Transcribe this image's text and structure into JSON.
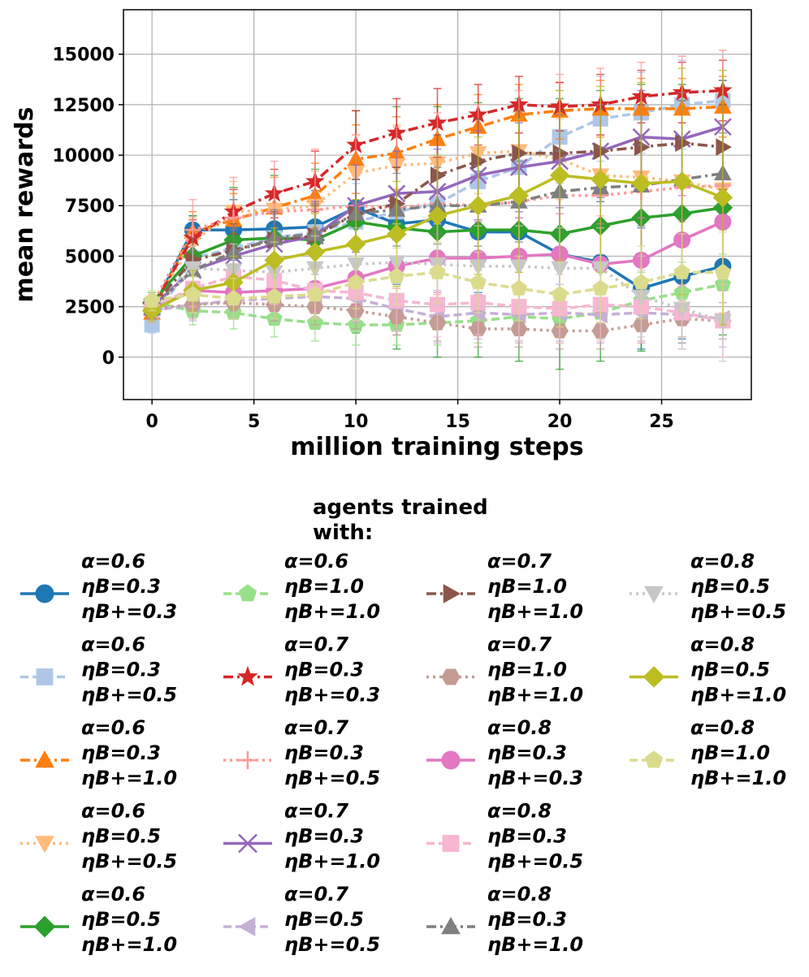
{
  "chart_data": {
    "type": "line",
    "xlabel": "million training steps",
    "ylabel": "mean rewards",
    "xlim": [
      -1.4,
      29.4
    ],
    "ylim": [
      -2100,
      17200
    ],
    "xticks": [
      0,
      5,
      10,
      15,
      20,
      25
    ],
    "yticks": [
      0,
      2500,
      5000,
      7500,
      10000,
      12500,
      15000
    ],
    "grid": true,
    "legend": {
      "title": "agents trained with:",
      "placement": "below",
      "columns": 4
    },
    "x": [
      0,
      2,
      4,
      6,
      8,
      10,
      12,
      14,
      16,
      18,
      20,
      22,
      24,
      26,
      28
    ],
    "series": [
      {
        "name": "α=0.6 ηB=0.3 ηB+=0.3",
        "label": [
          "α=0.6",
          "ηB=0.3",
          "ηB+=0.3"
        ],
        "color": "#1f77b4",
        "marker": "circle",
        "dash": "solid",
        "values": [
          2300,
          6300,
          6300,
          6350,
          6450,
          7400,
          6600,
          6800,
          6200,
          6200,
          5100,
          4700,
          3400,
          4000,
          4500
        ],
        "err": [
          500,
          700,
          1500,
          1700,
          1800,
          2200,
          3000,
          2800,
          3000,
          3400,
          3200,
          3000,
          3000,
          3100,
          3000
        ]
      },
      {
        "name": "α=0.6 ηB=0.3 ηB+=0.5",
        "label": [
          "α=0.6",
          "ηB=0.3",
          "ηB+=0.5"
        ],
        "color": "#aec7e8",
        "marker": "square",
        "dash": "dashed",
        "values": [
          1600,
          4900,
          5400,
          5900,
          6200,
          6700,
          7200,
          7600,
          8700,
          9400,
          10900,
          11800,
          12100,
          12500,
          12700
        ],
        "err": [
          400,
          1400,
          1500,
          1600,
          1700,
          1900,
          2200,
          2300,
          2400,
          2500,
          2300,
          2100,
          2000,
          2200,
          2300
        ]
      },
      {
        "name": "α=0.6 ηB=0.3 ηB+=1.0",
        "label": [
          "α=0.6",
          "ηB=0.3",
          "ηB+=1.0"
        ],
        "color": "#ff7f0e",
        "marker": "triangle-up",
        "dash": "dashdot",
        "values": [
          2200,
          6200,
          6800,
          7400,
          8000,
          9800,
          10100,
          10800,
          11400,
          12000,
          12200,
          12300,
          12300,
          12300,
          12400
        ],
        "err": [
          500,
          1000,
          1300,
          1500,
          1600,
          1700,
          1800,
          1700,
          1600,
          1500,
          1400,
          1400,
          1500,
          1500,
          1500
        ]
      },
      {
        "name": "α=0.6 ηB=0.5 ηB+=0.5",
        "label": [
          "α=0.6",
          "ηB=0.5",
          "ηB+=0.5"
        ],
        "color": "#ffbb78",
        "marker": "triangle-down",
        "dash": "dotted",
        "values": [
          2400,
          5700,
          7200,
          7300,
          7500,
          9100,
          9500,
          9600,
          10100,
          10200,
          9800,
          9000,
          8900,
          8700,
          8300
        ],
        "err": [
          500,
          1200,
          1500,
          1600,
          1700,
          1900,
          2000,
          2100,
          2000,
          2000,
          2000,
          2000,
          2000,
          2000,
          2000
        ]
      },
      {
        "name": "α=0.6 ηB=0.5 ηB+=1.0",
        "label": [
          "α=0.6",
          "ηB=0.5",
          "ηB+=1.0"
        ],
        "color": "#2ca02c",
        "marker": "diamond",
        "dash": "solid",
        "values": [
          2700,
          5000,
          5800,
          5900,
          5800,
          6700,
          6400,
          6200,
          6300,
          6300,
          6100,
          6500,
          6900,
          7100,
          7400
        ],
        "err": [
          500,
          2000,
          2600,
          3100,
          3500,
          5500,
          6000,
          6200,
          6300,
          6500,
          6700,
          6700,
          6600,
          6400,
          6300
        ]
      },
      {
        "name": "α=0.6 ηB=1.0 ηB+=1.0",
        "label": [
          "α=0.6",
          "ηB=1.0",
          "ηB+=1.0"
        ],
        "color": "#98df8a",
        "marker": "pentagon",
        "dash": "dashed",
        "values": [
          2700,
          2300,
          2200,
          1900,
          1700,
          1600,
          1600,
          1700,
          1800,
          2000,
          1900,
          2200,
          2800,
          3200,
          3600
        ],
        "err": [
          500,
          700,
          800,
          900,
          900,
          1000,
          1000,
          1100,
          1100,
          1200,
          1200,
          1300,
          1400,
          1500,
          1500
        ]
      },
      {
        "name": "α=0.7 ηB=0.3 ηB+=0.3",
        "label": [
          "α=0.7",
          "ηB=0.3",
          "ηB+=0.3"
        ],
        "color": "#d62728",
        "marker": "star",
        "dash": "dashdot",
        "values": [
          2500,
          5900,
          7200,
          8100,
          8700,
          10500,
          11100,
          11600,
          12000,
          12500,
          12400,
          12500,
          12900,
          13100,
          13200
        ],
        "err": [
          500,
          900,
          1100,
          1200,
          1500,
          1700,
          1700,
          1700,
          1500,
          1400,
          1200,
          1500,
          1300,
          1500,
          1500
        ]
      },
      {
        "name": "α=0.7 ηB=0.3 ηB+=0.5",
        "label": [
          "α=0.7",
          "ηB=0.3",
          "ηB+=0.5"
        ],
        "color": "#ff9896",
        "marker": "plus",
        "dash": "dotted",
        "values": [
          2600,
          6300,
          6900,
          7200,
          7300,
          7500,
          7400,
          7600,
          7500,
          7700,
          8000,
          8000,
          8200,
          8400,
          8500
        ],
        "err": [
          500,
          1500,
          2000,
          2500,
          3000,
          3500,
          4000,
          4500,
          5000,
          5500,
          6000,
          6300,
          6400,
          6500,
          6700
        ]
      },
      {
        "name": "α=0.7 ηB=0.3 ηB+=1.0",
        "label": [
          "α=0.7",
          "ηB=0.3",
          "ηB+=1.0"
        ],
        "color": "#9467bd",
        "marker": "x",
        "dash": "solid",
        "values": [
          2500,
          4300,
          5000,
          5600,
          6000,
          7500,
          8100,
          8200,
          9000,
          9400,
          9700,
          10200,
          10900,
          10800,
          11400
        ],
        "err": [
          500,
          1000,
          1300,
          1500,
          1700,
          2000,
          2100,
          2100,
          2200,
          2200,
          2300,
          2300,
          2300,
          2300,
          2300
        ]
      },
      {
        "name": "α=0.7 ηB=0.5 ηB+=0.5",
        "label": [
          "α=0.7",
          "ηB=0.5",
          "ηB+=0.5"
        ],
        "color": "#c5b0d5",
        "marker": "triangle-left",
        "dash": "dashed",
        "values": [
          2300,
          2600,
          2800,
          2900,
          3000,
          2900,
          2400,
          2000,
          2200,
          2100,
          2200,
          2100,
          2200,
          2100,
          1900
        ],
        "err": [
          500,
          800,
          900,
          1000,
          1100,
          1200,
          1300,
          1300,
          1300,
          1400,
          1400,
          1400,
          1400,
          1400,
          1400
        ]
      },
      {
        "name": "α=0.7 ηB=1.0 ηB+=1.0",
        "label": [
          "α=0.7",
          "ηB=1.0",
          "ηB+=1.0"
        ],
        "color": "#8c564b",
        "marker": "triangle-right",
        "dash": "dashdot",
        "values": [
          2500,
          4800,
          5300,
          5800,
          6000,
          7100,
          7600,
          9000,
          9700,
          10100,
          10100,
          10200,
          10400,
          10600,
          10400
        ],
        "err": [
          500,
          1100,
          1300,
          1400,
          1500,
          1700,
          1800,
          2000,
          2100,
          2100,
          2100,
          2100,
          2100,
          2100,
          2100
        ]
      },
      {
        "name": "α=0.7 ηB=1.0 ηB+=1.0",
        "label": [
          "α=0.7",
          "ηB=1.0",
          "ηB+=1.0"
        ],
        "color": "#c49c94",
        "marker": "hexagon",
        "dash": "dotted",
        "values": [
          2400,
          2600,
          2700,
          2600,
          2500,
          2300,
          2000,
          1700,
          1400,
          1400,
          1300,
          1300,
          1600,
          1900,
          1800
        ],
        "err": [
          500,
          700,
          800,
          800,
          900,
          900,
          900,
          900,
          900,
          900,
          900,
          900,
          900,
          900,
          900
        ]
      },
      {
        "name": "α=0.8 ηB=0.3 ηB+=0.3",
        "label": [
          "α=0.8",
          "ηB=0.3",
          "ηB+=0.3"
        ],
        "color": "#e377c2",
        "marker": "circle",
        "dash": "solid",
        "values": [
          2400,
          3300,
          3200,
          3300,
          3400,
          3900,
          4500,
          4900,
          4900,
          5000,
          5100,
          4600,
          4800,
          5800,
          6700
        ],
        "err": [
          500,
          800,
          900,
          1000,
          1100,
          1300,
          1500,
          1700,
          1800,
          1900,
          2000,
          2000,
          2100,
          2200,
          2300
        ]
      },
      {
        "name": "α=0.8 ηB=0.3 ηB+=0.5",
        "label": [
          "α=0.8",
          "ηB=0.3",
          "ηB+=0.5"
        ],
        "color": "#f7b6d2",
        "marker": "square",
        "dash": "dashed",
        "values": [
          2500,
          3400,
          4000,
          3800,
          3300,
          3200,
          2800,
          2600,
          2700,
          2500,
          2400,
          2600,
          2500,
          2200,
          1800
        ],
        "err": [
          500,
          900,
          1100,
          1200,
          1300,
          1400,
          1500,
          1600,
          1600,
          1700,
          1700,
          1800,
          1800,
          1800,
          1800
        ]
      },
      {
        "name": "α=0.8 ηB=0.3 ηB+=1.0",
        "label": [
          "α=0.8",
          "ηB=0.3",
          "ηB+=1.0"
        ],
        "color": "#7f7f7f",
        "marker": "triangle-up",
        "dash": "dashdot",
        "values": [
          2400,
          4300,
          5200,
          5900,
          6100,
          7100,
          7300,
          7500,
          7500,
          7700,
          8200,
          8400,
          8500,
          8800,
          9100
        ],
        "err": [
          500,
          1000,
          1200,
          1400,
          1500,
          1700,
          1800,
          1900,
          2000,
          2000,
          2000,
          2000,
          2000,
          2000,
          2000
        ]
      },
      {
        "name": "α=0.8 ηB=0.5 ηB+=0.5",
        "label": [
          "α=0.8",
          "ηB=0.5",
          "ηB+=0.5"
        ],
        "color": "#c7c7c7",
        "marker": "triangle-down",
        "dash": "dotted",
        "values": [
          2200,
          4400,
          4300,
          4200,
          4400,
          4600,
          4700,
          4600,
          4500,
          4500,
          4400,
          4400,
          3000,
          2400,
          1800
        ],
        "err": [
          500,
          1100,
          1300,
          1500,
          1600,
          1800,
          1900,
          2000,
          2000,
          2000,
          2000,
          2000,
          2000,
          2000,
          2000
        ]
      },
      {
        "name": "α=0.8 ηB=0.5 ηB+=1.0",
        "label": [
          "α=0.8",
          "ηB=0.5",
          "ηB+=1.0"
        ],
        "color": "#bcbd22",
        "marker": "diamond",
        "dash": "solid",
        "values": [
          2300,
          3300,
          3700,
          4800,
          5200,
          5600,
          6100,
          7000,
          7500,
          8000,
          9000,
          8800,
          8600,
          8700,
          7900
        ],
        "err": [
          500,
          1000,
          1300,
          1600,
          1900,
          2200,
          2600,
          3000,
          3400,
          3800,
          4200,
          4600,
          5000,
          5600,
          6300
        ]
      },
      {
        "name": "α=0.8 ηB=1.0 ηB+=1.0",
        "label": [
          "α=0.8",
          "ηB=1.0",
          "ηB+=1.0"
        ],
        "color": "#dbdb8d",
        "marker": "pentagon",
        "dash": "dashed",
        "values": [
          2800,
          3100,
          2900,
          3000,
          3100,
          3700,
          4000,
          4200,
          3700,
          3400,
          3100,
          3400,
          3700,
          4200,
          4200
        ],
        "err": [
          500,
          900,
          1000,
          1100,
          1200,
          1300,
          1400,
          1500,
          1500,
          1600,
          1600,
          1700,
          1800,
          1900,
          2000
        ]
      }
    ]
  }
}
